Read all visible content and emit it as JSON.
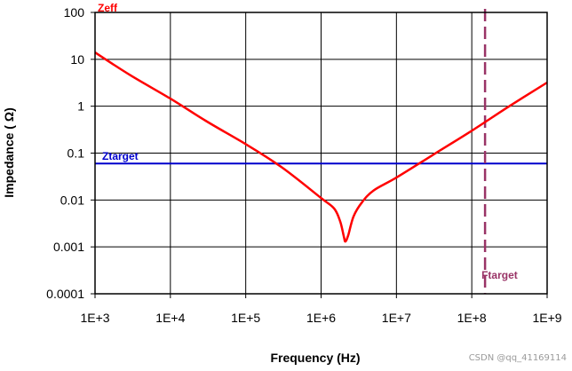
{
  "watermark": "CSDN @qq_41169114",
  "chart_data": {
    "type": "line",
    "title": "",
    "xlabel": "Frequency (Hz)",
    "ylabel": "Impedance ( Ω)",
    "x_scale": "log",
    "y_scale": "log",
    "xlim": [
      1000,
      1000000000
    ],
    "ylim": [
      0.0001,
      100
    ],
    "x_ticks": [
      1000,
      10000,
      100000,
      1000000,
      10000000,
      100000000,
      1000000000
    ],
    "x_tick_labels": [
      "1E+3",
      "1E+4",
      "1E+5",
      "1E+6",
      "1E+7",
      "1E+8",
      "1E+9"
    ],
    "y_ticks": [
      0.0001,
      0.001,
      0.01,
      0.1,
      1,
      10,
      100
    ],
    "y_tick_labels": [
      "0.0001",
      "0.001",
      "0.01",
      "0.1",
      "1",
      "10",
      "100"
    ],
    "grid": true,
    "colors": {
      "zeff": "#ff0000",
      "ztarget": "#0000cc",
      "ftarget": "#993366",
      "grid": "#000000"
    },
    "series": [
      {
        "name": "Zeff",
        "x": [
          1000,
          3000,
          10000,
          30000,
          100000,
          300000,
          1000000,
          1500000,
          1800000,
          2000000,
          2100000,
          2300000,
          2700000,
          3500000,
          5000000,
          10000000,
          30000000,
          100000000,
          300000000,
          1000000000
        ],
        "y": [
          14,
          4.5,
          1.45,
          0.48,
          0.155,
          0.05,
          0.011,
          0.0065,
          0.0034,
          0.0017,
          0.0013,
          0.0018,
          0.0045,
          0.009,
          0.016,
          0.03,
          0.09,
          0.3,
          0.95,
          3.2
        ]
      },
      {
        "name": "Ztarget",
        "type": "hline",
        "y": 0.06
      },
      {
        "name": "Ftarget",
        "type": "vline",
        "x": 150000000
      }
    ]
  }
}
